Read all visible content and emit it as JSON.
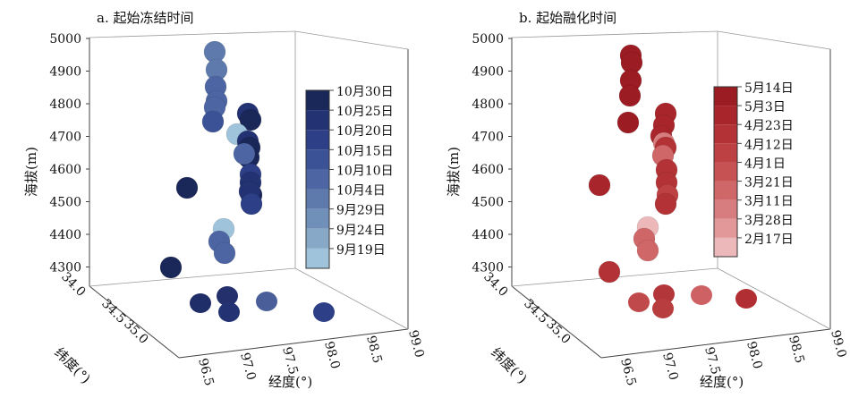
{
  "chart_data": [
    {
      "type": "scatter",
      "title": "a. 起始冻结时间",
      "zlabel": "海拔(m)",
      "ylabel": "纬度(°)",
      "xlabel": "经度(°)",
      "z_ticks": [
        "5000",
        "4900",
        "4800",
        "4700",
        "4600",
        "4500",
        "4400",
        "4300"
      ],
      "y_ticks": [
        "34.0",
        "34.5",
        "35.0"
      ],
      "x_ticks": [
        "96.5",
        "97.0",
        "97.5",
        "98.0",
        "98.5",
        "99.0"
      ],
      "legend": [
        "10月30日",
        "10月25日",
        "10月20日",
        "10月15日",
        "10月10日",
        "10月4日",
        "9月29日",
        "9月24日",
        "9月19日"
      ],
      "legend_colors": [
        "#1a2759",
        "#233272",
        "#2d3f86",
        "#3c5296",
        "#4d66a3",
        "#5e7aad",
        "#7190b9",
        "#88a8c7",
        "#9fc3da"
      ],
      "points": [
        {
          "elev": 4960,
          "date_level": 5
        },
        {
          "elev": 4920,
          "date_level": 5
        },
        {
          "elev": 4880,
          "date_level": 4
        },
        {
          "elev": 4850,
          "date_level": 4
        },
        {
          "elev": 4820,
          "date_level": 4
        },
        {
          "elev": 4750,
          "date_level": 3
        },
        {
          "elev": 4780,
          "date_level": 1
        },
        {
          "elev": 4750,
          "date_level": 0
        },
        {
          "elev": 4710,
          "date_level": 8
        },
        {
          "elev": 4700,
          "date_level": 1
        },
        {
          "elev": 4680,
          "date_level": 0
        },
        {
          "elev": 4650,
          "date_level": 0
        },
        {
          "elev": 4620,
          "date_level": 4
        },
        {
          "elev": 4590,
          "date_level": 2
        },
        {
          "elev": 4560,
          "date_level": 1
        },
        {
          "elev": 4540,
          "date_level": 0
        },
        {
          "elev": 4510,
          "date_level": 1
        },
        {
          "elev": 4490,
          "date_level": 2
        },
        {
          "elev": 4550,
          "date_level": 0
        },
        {
          "elev": 4420,
          "date_level": 8
        },
        {
          "elev": 4380,
          "date_level": 4
        },
        {
          "elev": 4340,
          "date_level": 4
        },
        {
          "elev": 4300,
          "date_level": 0
        }
      ]
    },
    {
      "type": "scatter",
      "title": "b. 起始融化时间",
      "zlabel": "海拔(m)",
      "ylabel": "纬度(°)",
      "xlabel": "经度(°)",
      "z_ticks": [
        "5000",
        "4900",
        "4800",
        "4700",
        "4600",
        "4500",
        "4400",
        "4300"
      ],
      "y_ticks": [
        "34.0",
        "34.5",
        "35.0"
      ],
      "x_ticks": [
        "96.5",
        "97.0",
        "97.5",
        "98.0",
        "98.5",
        "99.0"
      ],
      "legend": [
        "5月14日",
        "5月3日",
        "4月23日",
        "4月12日",
        "4月1日",
        "3月21日",
        "3月11日",
        "3月28日",
        "2月17日"
      ],
      "legend_colors": [
        "#9b1c22",
        "#a8262b",
        "#b33235",
        "#bd4043",
        "#c65254",
        "#cf6668",
        "#d87d7f",
        "#e29799",
        "#ecb8ba"
      ],
      "points": [
        {
          "elev": 4960,
          "date_level": 0
        },
        {
          "elev": 4930,
          "date_level": 0
        },
        {
          "elev": 4890,
          "date_level": 0
        },
        {
          "elev": 4830,
          "date_level": 0
        },
        {
          "elev": 4760,
          "date_level": 0
        },
        {
          "elev": 4780,
          "date_level": 1
        },
        {
          "elev": 4750,
          "date_level": 1
        },
        {
          "elev": 4720,
          "date_level": 1
        },
        {
          "elev": 4700,
          "date_level": 6
        },
        {
          "elev": 4670,
          "date_level": 2
        },
        {
          "elev": 4640,
          "date_level": 5
        },
        {
          "elev": 4600,
          "date_level": 2
        },
        {
          "elev": 4570,
          "date_level": 2
        },
        {
          "elev": 4540,
          "date_level": 3
        },
        {
          "elev": 4510,
          "date_level": 2
        },
        {
          "elev": 4560,
          "date_level": 1
        },
        {
          "elev": 4420,
          "date_level": 8
        },
        {
          "elev": 4390,
          "date_level": 5
        },
        {
          "elev": 4350,
          "date_level": 5
        },
        {
          "elev": 4270,
          "date_level": 2
        }
      ]
    }
  ]
}
